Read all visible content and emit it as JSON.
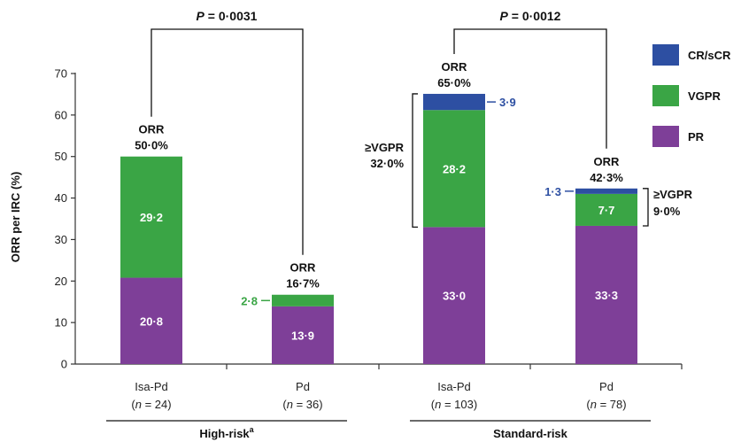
{
  "chart_data": {
    "type": "bar",
    "stacked": true,
    "ylabel": "ORR per IRC (%)",
    "ylim": [
      0,
      70
    ],
    "yticks": [
      0,
      10,
      20,
      30,
      40,
      50,
      60,
      70
    ],
    "grid": false,
    "legend_position": "top-right",
    "series": [
      {
        "name": "PR",
        "color": "#7e3f98"
      },
      {
        "name": "VGPR",
        "color": "#3aa545"
      },
      {
        "name": "CR/sCR",
        "color": "#2d4fa2"
      }
    ],
    "legend_order": [
      "CR/sCR",
      "VGPR",
      "PR"
    ],
    "bars": [
      {
        "category": "Isa-Pd",
        "n_label": "= 24",
        "group": "High-risk",
        "pr": 20.8,
        "vgpr": 29.2,
        "cr": 0,
        "pr_label": "20·8",
        "vgpr_label": "29·2",
        "cr_label": "",
        "orr_line1": "ORR",
        "orr_line2": "50·0%",
        "outside_vgpr_label": "",
        "outside_cr_label": ""
      },
      {
        "category": "Pd",
        "n_label": "= 36",
        "group": "High-risk",
        "pr": 13.9,
        "vgpr": 2.8,
        "cr": 0,
        "pr_label": "13·9",
        "vgpr_label": "",
        "cr_label": "",
        "orr_line1": "ORR",
        "orr_line2": "16·7%",
        "outside_vgpr_label": "2·8",
        "outside_cr_label": ""
      },
      {
        "category": "Isa-Pd",
        "n_label": "= 103",
        "group": "Standard-risk",
        "pr": 33.0,
        "vgpr": 28.2,
        "cr": 3.9,
        "pr_label": "33·0",
        "vgpr_label": "28·2",
        "cr_label": "",
        "orr_line1": "ORR",
        "orr_line2": "65·0%",
        "outside_vgpr_label": "",
        "outside_cr_label": "3·9"
      },
      {
        "category": "Pd",
        "n_label": "= 78",
        "group": "Standard-risk",
        "pr": 33.3,
        "vgpr": 7.7,
        "cr": 1.3,
        "pr_label": "33·3",
        "vgpr_label": "7·7",
        "cr_label": "",
        "orr_line1": "ORR",
        "orr_line2": "42·3%",
        "outside_vgpr_label": "",
        "outside_cr_label": "1·3"
      }
    ],
    "groups": [
      {
        "label": "High-risk",
        "superscript": "a"
      },
      {
        "label": "Standard-risk",
        "superscript": ""
      }
    ],
    "comparisons": [
      {
        "p_label": "P",
        "p_value": "= 0·0031"
      },
      {
        "p_label": "P",
        "p_value": "= 0·0012"
      }
    ],
    "vgpr_brackets": [
      {
        "line1": "≥VGPR",
        "line2": "32·0%"
      },
      {
        "line1": "≥VGPR",
        "line2": "9·0%"
      }
    ],
    "n_prefix": "(",
    "n_italic": "n",
    "n_suffix": ")"
  }
}
